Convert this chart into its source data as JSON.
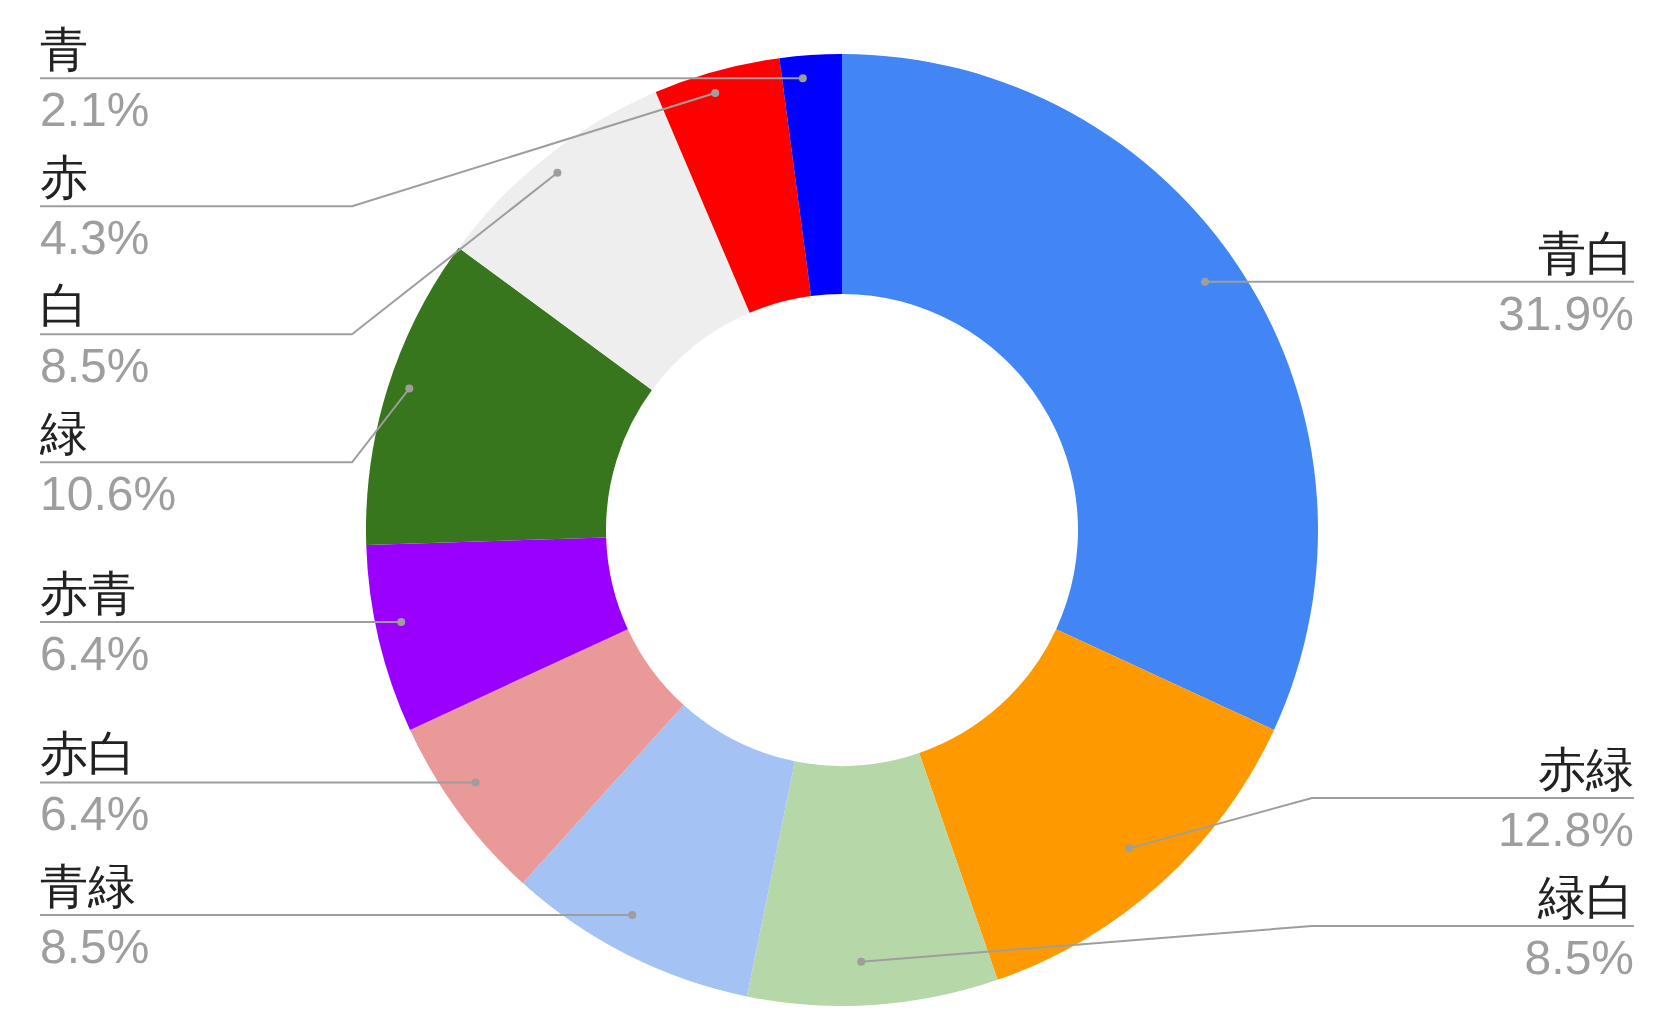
{
  "chart_data": {
    "type": "donut",
    "categories": [
      "青白",
      "赤緑",
      "緑白",
      "青緑",
      "赤白",
      "赤青",
      "緑",
      "白",
      "赤",
      "青"
    ],
    "values": [
      31.9,
      12.8,
      8.5,
      8.5,
      6.4,
      6.4,
      10.6,
      8.5,
      4.3,
      2.1
    ],
    "colors": [
      "#4285f4",
      "#ff9900",
      "#b6d7a8",
      "#a4c2f4",
      "#ea9999",
      "#9900ff",
      "#38761d",
      "#eeeeee",
      "#ff0000",
      "#0000ff"
    ],
    "value_labels": [
      "31.9%",
      "12.8%",
      "8.5%",
      "8.5%",
      "6.4%",
      "6.4%",
      "10.6%",
      "8.5%",
      "4.3%",
      "2.1%"
    ],
    "legend": false
  }
}
